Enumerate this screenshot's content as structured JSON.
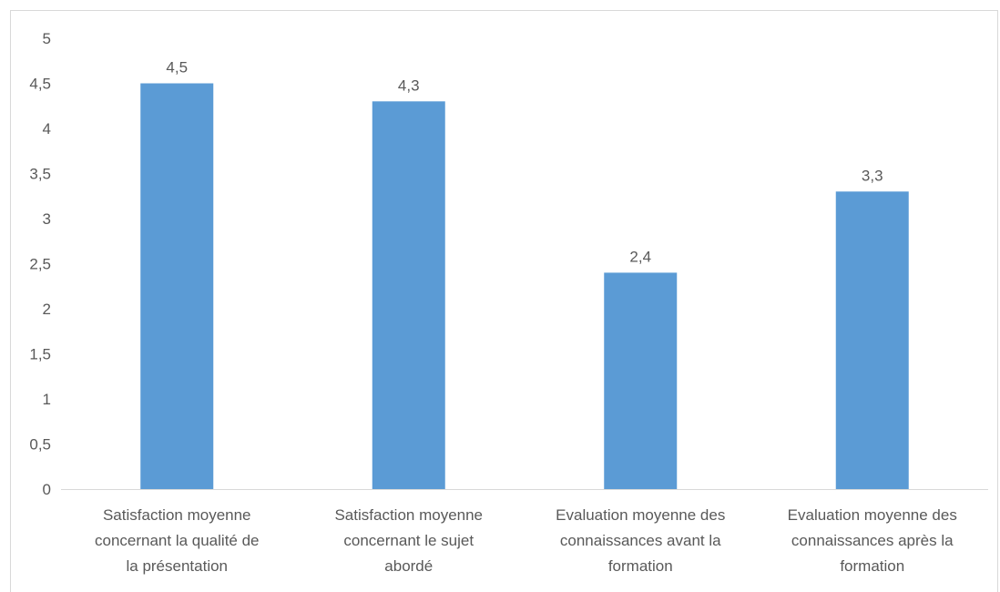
{
  "chart_data": {
    "type": "bar",
    "categories": [
      [
        "Satisfaction moyenne",
        "concernant la qualité de",
        "la présentation"
      ],
      [
        "Satisfaction moyenne",
        "concernant le sujet",
        "abordé"
      ],
      [
        "Evaluation moyenne des",
        "connaissances avant la",
        "formation"
      ],
      [
        "Evaluation moyenne des",
        "connaissances après la",
        "formation"
      ]
    ],
    "values": [
      4.5,
      4.3,
      2.4,
      3.3
    ],
    "data_labels": [
      "4,5",
      "4,3",
      "2,4",
      "3,3"
    ],
    "ylim": [
      0,
      5
    ],
    "yticks": [
      0,
      0.5,
      1,
      1.5,
      2,
      2.5,
      3,
      3.5,
      4,
      4.5,
      5
    ],
    "ytick_labels": [
      "0",
      "0,5",
      "1",
      "1,5",
      "2",
      "2,5",
      "3",
      "3,5",
      "4",
      "4,5",
      "5"
    ],
    "grid": false,
    "legend": "none",
    "title": "",
    "xlabel": "",
    "ylabel": "",
    "colors": {
      "bar": "#5b9bd5",
      "axis": "#d9d9d9",
      "text": "#595959"
    }
  }
}
